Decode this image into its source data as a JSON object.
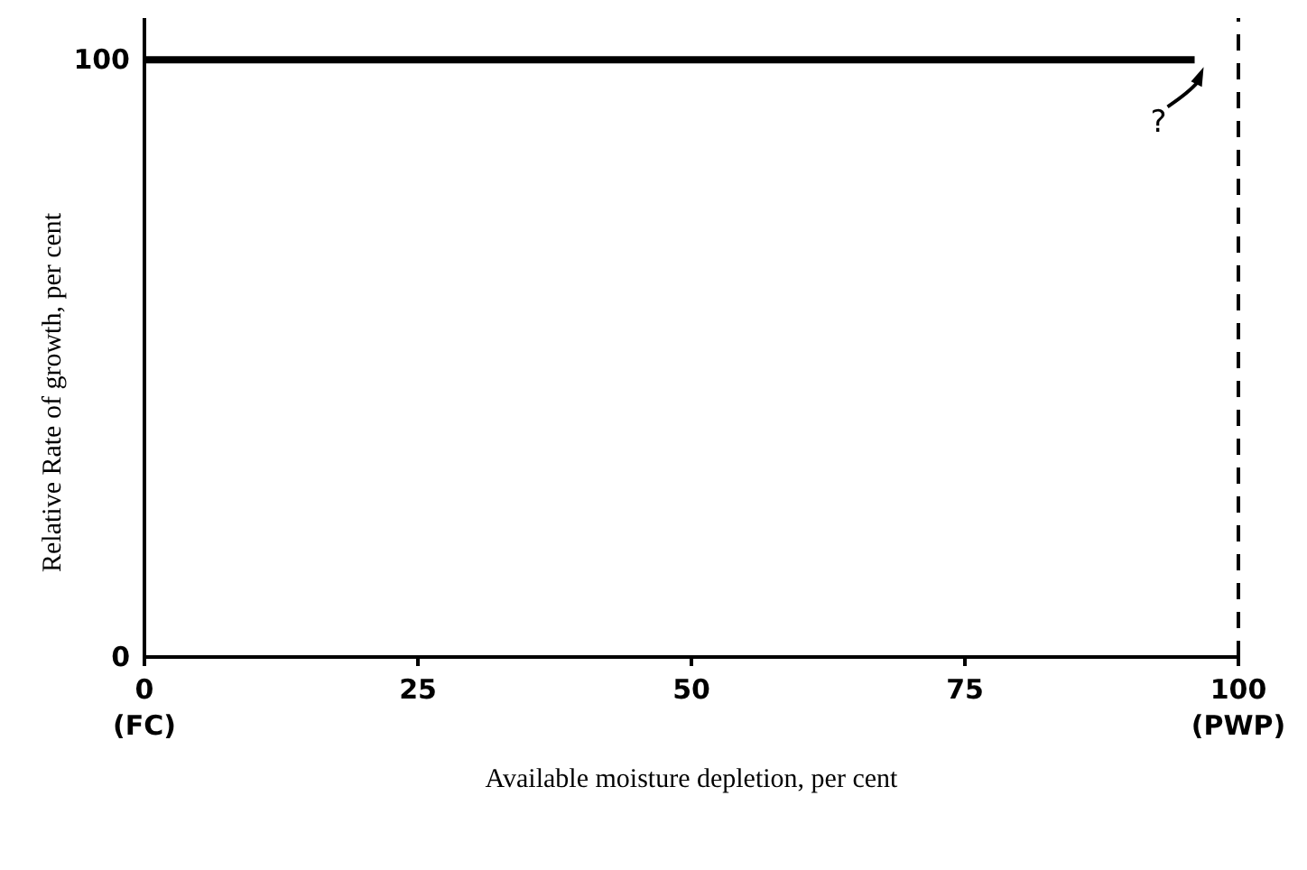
{
  "chart_data": {
    "type": "line",
    "xlabel": "Available moisture depletion, per cent",
    "ylabel": "Relative Rate of growth, per cent",
    "x": [
      0,
      96
    ],
    "series": [
      {
        "color": "#000000",
        "values": [
          100,
          100
        ]
      }
    ],
    "xlim": [
      0,
      100
    ],
    "xticks": [
      {
        "value": 0,
        "label": "0\n(FC)"
      },
      25,
      50,
      75,
      {
        "value": 100,
        "label": "100\n(PWP)"
      }
    ],
    "ylim": [
      0,
      107
    ],
    "yticks": [
      0,
      100
    ],
    "ref_lines": [
      {
        "axis": "x",
        "value": 100,
        "label": null,
        "color": "#000000",
        "line_style": "dashed"
      }
    ],
    "annotations": [
      {
        "text": "?",
        "x": 96,
        "y": 100
      }
    ],
    "grid": false,
    "legend": false,
    "marker": "none",
    "line_style": "solid"
  }
}
